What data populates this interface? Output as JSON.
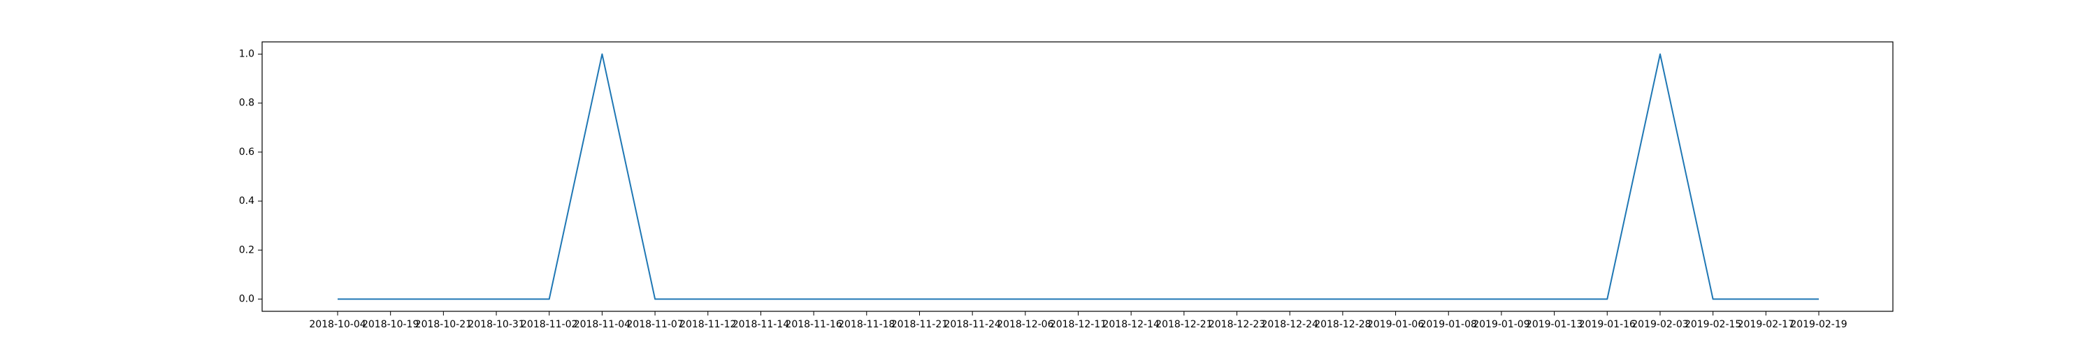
{
  "chart_data": {
    "type": "line",
    "title": "",
    "xlabel": "",
    "ylabel": "",
    "categories": [
      "2018-10-04",
      "2018-10-19",
      "2018-10-21",
      "2018-10-31",
      "2018-11-02",
      "2018-11-04",
      "2018-11-07",
      "2018-11-12",
      "2018-11-14",
      "2018-11-16",
      "2018-11-18",
      "2018-11-21",
      "2018-11-24",
      "2018-12-06",
      "2018-12-11",
      "2018-12-14",
      "2018-12-21",
      "2018-12-23",
      "2018-12-24",
      "2018-12-28",
      "2019-01-06",
      "2019-01-08",
      "2019-01-09",
      "2019-01-13",
      "2019-01-16",
      "2019-02-03",
      "2019-02-15",
      "2019-02-17",
      "2019-02-19"
    ],
    "series": [
      {
        "color": "#1f77b4",
        "values": [
          0,
          0,
          0,
          0,
          0,
          1,
          0,
          0,
          0,
          0,
          0,
          0,
          0,
          0,
          0,
          0,
          0,
          0,
          0,
          0,
          0,
          0,
          0,
          0,
          0,
          1,
          0,
          0,
          0
        ]
      }
    ],
    "ylim": [
      -0.05,
      1.05
    ],
    "yticks": [
      0.0,
      0.2,
      0.4,
      0.6,
      0.8,
      1.0
    ],
    "ytick_labels": [
      "0.0",
      "0.2",
      "0.4",
      "0.6",
      "0.8",
      "1.0"
    ],
    "grid": false,
    "legend": "none"
  }
}
